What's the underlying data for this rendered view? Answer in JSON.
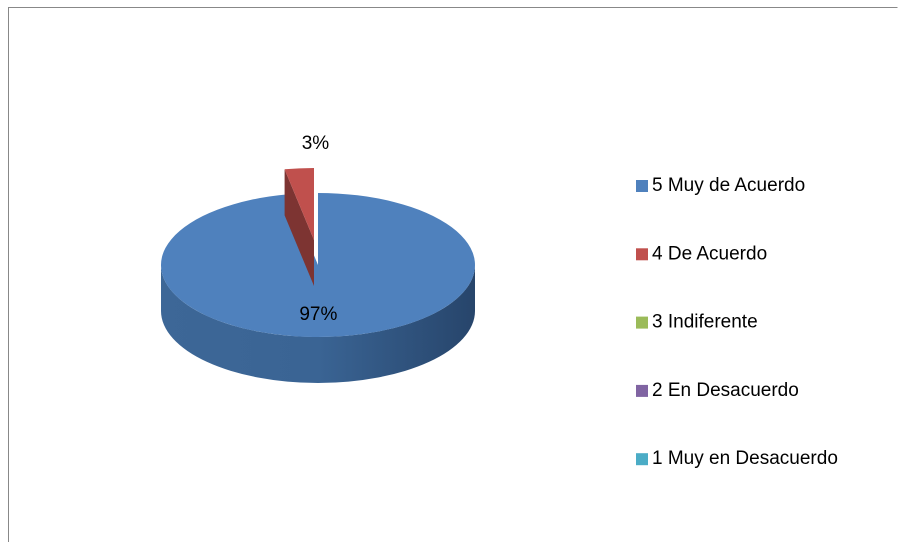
{
  "chart_data": {
    "type": "pie",
    "categories": [
      "5 Muy de Acuerdo",
      "4 De Acuerdo",
      "3 Indiferente",
      "2 En Desacuerdo",
      "1 Muy en Desacuerdo"
    ],
    "values": [
      97,
      3,
      0,
      0,
      0
    ],
    "value_labels": [
      "97%",
      "3%",
      null,
      null,
      null
    ],
    "colors": [
      "#4f81bd",
      "#c0504d",
      "#9bbb59",
      "#8064a2",
      "#4bacc6"
    ],
    "legend": "right"
  }
}
